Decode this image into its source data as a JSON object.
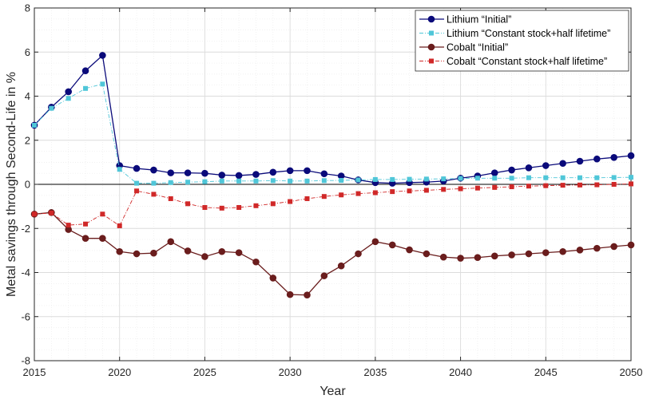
{
  "chart_data": {
    "type": "line",
    "xlabel": "Year",
    "ylabel": "Metal savings through Second-Life in %",
    "xlim": [
      2015,
      2050
    ],
    "ylim": [
      -8,
      8
    ],
    "xticks": [
      2015,
      2020,
      2025,
      2030,
      2035,
      2040,
      2045,
      2050
    ],
    "yticks": [
      -8,
      -6,
      -4,
      -2,
      0,
      2,
      4,
      6,
      8
    ],
    "xtick_labels": [
      "2015",
      "2020",
      "2025",
      "2030",
      "2035",
      "2040",
      "2045",
      "2050"
    ],
    "ytick_labels": [
      "-8",
      "-6",
      "-4",
      "-2",
      "0",
      "2",
      "4",
      "6",
      "8"
    ],
    "grid": true,
    "minor_grid": true,
    "legend_position": "top-right",
    "x": [
      2015,
      2016,
      2017,
      2018,
      2019,
      2020,
      2021,
      2022,
      2023,
      2024,
      2025,
      2026,
      2027,
      2028,
      2029,
      2030,
      2031,
      2032,
      2033,
      2034,
      2035,
      2036,
      2037,
      2038,
      2039,
      2040,
      2041,
      2042,
      2043,
      2044,
      2045,
      2046,
      2047,
      2048,
      2049,
      2050
    ],
    "series": [
      {
        "name": "Lithium “Initial”",
        "color": "#0a0a7a",
        "marker": "circle",
        "dash": "solid",
        "values": [
          2.68,
          3.5,
          4.2,
          5.15,
          5.85,
          0.85,
          0.72,
          0.65,
          0.52,
          0.52,
          0.5,
          0.42,
          0.4,
          0.45,
          0.55,
          0.62,
          0.62,
          0.48,
          0.38,
          0.2,
          0.08,
          0.05,
          0.08,
          0.1,
          0.15,
          0.28,
          0.38,
          0.52,
          0.65,
          0.75,
          0.85,
          0.95,
          1.05,
          1.15,
          1.22,
          1.3
        ]
      },
      {
        "name": "Lithium “Constant stock+half lifetime”",
        "color": "#4fc6d8",
        "marker": "square",
        "dash": "dashdot",
        "values": [
          2.68,
          3.45,
          3.9,
          4.35,
          4.55,
          0.68,
          0.05,
          0.05,
          0.08,
          0.1,
          0.12,
          0.15,
          0.15,
          0.15,
          0.17,
          0.15,
          0.15,
          0.17,
          0.18,
          0.2,
          0.22,
          0.22,
          0.23,
          0.24,
          0.25,
          0.27,
          0.28,
          0.28,
          0.28,
          0.3,
          0.3,
          0.3,
          0.3,
          0.3,
          0.31,
          0.32
        ]
      },
      {
        "name": "Cobalt “Initial”",
        "color": "#6a1d1d",
        "marker": "circle",
        "dash": "solid",
        "values": [
          -1.35,
          -1.28,
          -2.05,
          -2.45,
          -2.45,
          -3.05,
          -3.15,
          -3.12,
          -2.6,
          -3.02,
          -3.28,
          -3.05,
          -3.1,
          -3.52,
          -4.25,
          -5.0,
          -5.02,
          -4.15,
          -3.7,
          -3.15,
          -2.6,
          -2.75,
          -2.97,
          -3.15,
          -3.3,
          -3.35,
          -3.32,
          -3.25,
          -3.2,
          -3.15,
          -3.1,
          -3.05,
          -2.98,
          -2.9,
          -2.82,
          -2.75
        ]
      },
      {
        "name": "Cobalt “Constant stock+half lifetime”",
        "color": "#d02828",
        "marker": "square",
        "dash": "dashdot",
        "values": [
          -1.35,
          -1.3,
          -1.85,
          -1.8,
          -1.35,
          -1.88,
          -0.3,
          -0.45,
          -0.65,
          -0.88,
          -1.05,
          -1.08,
          -1.05,
          -0.97,
          -0.88,
          -0.78,
          -0.65,
          -0.55,
          -0.48,
          -0.42,
          -0.38,
          -0.33,
          -0.3,
          -0.27,
          -0.23,
          -0.2,
          -0.17,
          -0.14,
          -0.11,
          -0.08,
          -0.06,
          -0.04,
          -0.03,
          -0.02,
          0.0,
          0.02
        ]
      }
    ]
  }
}
